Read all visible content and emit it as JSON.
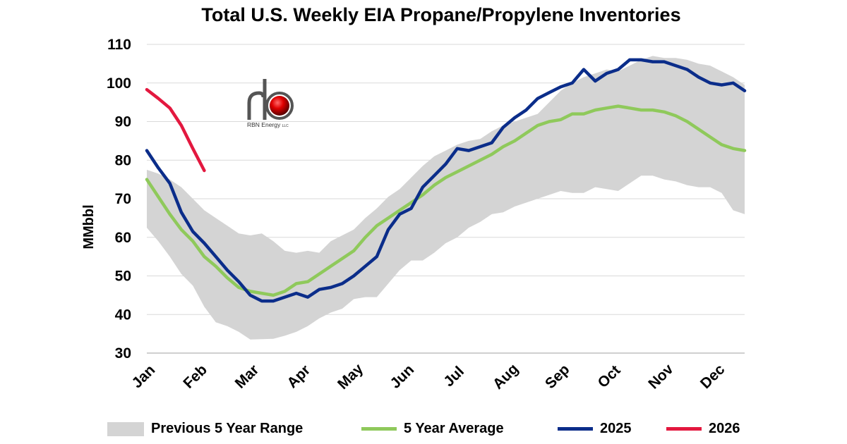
{
  "chart_data": {
    "type": "area",
    "title": "Total U.S. Weekly EIA Propane/Propylene Inventories",
    "xlabel": "",
    "ylabel": "MMbbl",
    "ylim": [
      30,
      110
    ],
    "yticks": [
      30,
      40,
      50,
      60,
      70,
      80,
      90,
      100,
      110
    ],
    "grid": true,
    "legend_position": "bottom",
    "x_unit": "week",
    "month_ticks": [
      {
        "label": "Jan",
        "week": 1
      },
      {
        "label": "Feb",
        "week": 5.5
      },
      {
        "label": "Mar",
        "week": 10
      },
      {
        "label": "Apr",
        "week": 14.5
      },
      {
        "label": "May",
        "week": 19
      },
      {
        "label": "Jun",
        "week": 23.5
      },
      {
        "label": "Jul",
        "week": 28
      },
      {
        "label": "Aug",
        "week": 32.5
      },
      {
        "label": "Sep",
        "week": 37
      },
      {
        "label": "Oct",
        "week": 41.5
      },
      {
        "label": "Nov",
        "week": 46
      },
      {
        "label": "Dec",
        "week": 50.5
      }
    ],
    "range": {
      "name": "Previous 5 Year Range",
      "color": "#d4d4d4",
      "weeks": [
        1,
        2,
        3,
        4,
        5,
        6,
        7,
        8,
        9,
        10,
        11,
        12,
        13,
        14,
        15,
        16,
        17,
        18,
        19,
        20,
        21,
        22,
        23,
        24,
        25,
        26,
        27,
        28,
        29,
        30,
        31,
        32,
        33,
        34,
        35,
        36,
        37,
        38,
        39,
        40,
        41,
        42,
        43,
        44,
        45,
        46,
        47,
        48,
        49,
        50,
        51,
        52,
        53
      ],
      "upper": [
        77.5,
        76.5,
        75,
        73,
        70,
        67,
        65,
        63,
        61,
        60.5,
        61,
        59,
        56.5,
        56,
        56.5,
        56,
        59,
        60.5,
        62,
        65,
        67.5,
        70.5,
        72.5,
        75.5,
        78.5,
        81,
        82.5,
        84,
        85,
        85.5,
        87.5,
        89,
        90,
        91,
        92,
        95,
        98,
        100,
        101.5,
        102.5,
        103.5,
        103,
        104.5,
        106,
        107,
        106.5,
        106.5,
        106,
        105,
        104.5,
        103,
        101.5,
        99.5
      ],
      "lower": [
        62.5,
        59,
        55,
        50.5,
        47.5,
        42,
        38,
        37,
        35.5,
        33.5,
        33.6,
        33.7,
        34.5,
        35.5,
        37,
        39,
        40.5,
        41.5,
        44,
        44.5,
        44.5,
        48,
        51.5,
        54,
        54,
        56,
        58.5,
        60,
        62.5,
        64,
        66,
        66.5,
        68,
        69,
        70,
        71,
        72,
        71.5,
        71.5,
        73,
        72.5,
        72,
        74,
        76,
        76,
        75,
        74.5,
        73.5,
        73,
        73,
        71.5,
        67,
        66
      ]
    },
    "series": [
      {
        "name": "5 Year Average",
        "color": "#8fc95b",
        "weeks": [
          1,
          2,
          3,
          4,
          5,
          6,
          7,
          8,
          9,
          10,
          11,
          12,
          13,
          14,
          15,
          16,
          17,
          18,
          19,
          20,
          21,
          22,
          23,
          24,
          25,
          26,
          27,
          28,
          29,
          30,
          31,
          32,
          33,
          34,
          35,
          36,
          37,
          38,
          39,
          40,
          41,
          42,
          43,
          44,
          45,
          46,
          47,
          48,
          49,
          50,
          51,
          52,
          53
        ],
        "values": [
          75,
          70.5,
          66,
          62,
          59,
          55,
          52.5,
          49.5,
          47,
          46,
          45.5,
          45,
          46,
          48,
          48.5,
          50.5,
          52.5,
          54.5,
          56.5,
          60,
          63,
          65,
          67,
          69,
          71,
          73.5,
          75.5,
          77,
          78.5,
          80,
          81.5,
          83.5,
          85,
          87,
          89,
          90,
          90.5,
          92,
          92,
          93,
          93.5,
          94,
          93.5,
          93,
          93,
          92.5,
          91.5,
          90,
          88,
          86,
          84,
          83,
          82.5
        ]
      },
      {
        "name": "2025",
        "color": "#0b2d8a",
        "weeks": [
          1,
          2,
          3,
          4,
          5,
          6,
          7,
          8,
          9,
          10,
          11,
          12,
          13,
          14,
          15,
          16,
          17,
          18,
          19,
          20,
          21,
          22,
          23,
          24,
          25,
          26,
          27,
          28,
          29,
          30,
          31,
          32,
          33,
          34,
          35,
          36,
          37,
          38,
          39,
          40,
          41,
          42,
          43,
          44,
          45,
          46,
          47,
          48,
          49,
          50,
          51,
          52,
          53
        ],
        "values": [
          82.5,
          78,
          74,
          66.5,
          61.5,
          58.5,
          55,
          51.5,
          48.5,
          45,
          43.5,
          43.5,
          44.5,
          45.5,
          44.5,
          46.5,
          47,
          48,
          50,
          52.5,
          55,
          62,
          66,
          67.5,
          73,
          76,
          79,
          83,
          82.5,
          83.5,
          84.5,
          88.5,
          91,
          93,
          96,
          97.5,
          99,
          100,
          103.5,
          100.5,
          102.5,
          103.5,
          106,
          106,
          105.5,
          105.5,
          104.5,
          103.5,
          101.5,
          100,
          99.5,
          100,
          98
        ]
      },
      {
        "name": "2026",
        "color": "#e3183f",
        "weeks": [
          1,
          2,
          3,
          4,
          5,
          6
        ],
        "values": [
          98.3,
          96,
          93.5,
          89,
          83,
          77.3
        ]
      }
    ]
  },
  "logo": {
    "text": "RBN Energy",
    "suffix": "LLC"
  }
}
